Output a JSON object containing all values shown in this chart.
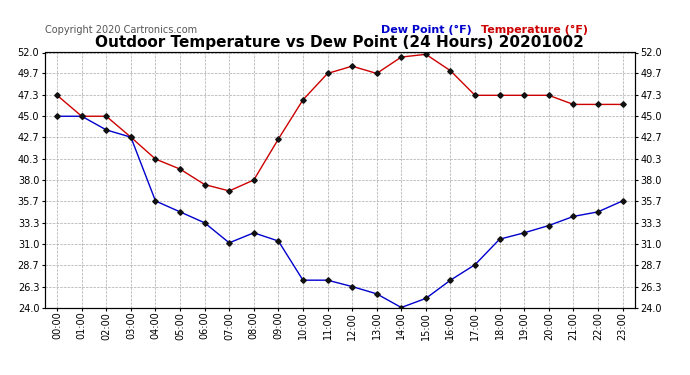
{
  "title": "Outdoor Temperature vs Dew Point (24 Hours) 20201002",
  "copyright": "Copyright 2020 Cartronics.com",
  "legend_dew": "Dew Point (°F)",
  "legend_temp": "Temperature (°F)",
  "hours": [
    0,
    1,
    2,
    3,
    4,
    5,
    6,
    7,
    8,
    9,
    10,
    11,
    12,
    13,
    14,
    15,
    16,
    17,
    18,
    19,
    20,
    21,
    22,
    23
  ],
  "temperature": [
    47.3,
    45.0,
    45.0,
    42.7,
    40.3,
    39.2,
    37.5,
    36.8,
    38.0,
    42.5,
    46.8,
    49.7,
    50.5,
    49.7,
    51.5,
    51.8,
    50.0,
    47.3,
    47.3,
    47.3,
    47.3,
    46.3,
    46.3,
    46.3
  ],
  "dew_point": [
    45.0,
    45.0,
    43.5,
    42.7,
    35.7,
    34.5,
    33.3,
    31.1,
    32.2,
    31.3,
    27.0,
    27.0,
    26.3,
    25.5,
    24.0,
    25.0,
    27.0,
    28.7,
    31.5,
    32.2,
    33.0,
    34.0,
    34.5,
    35.7
  ],
  "temp_color": "#cc0000",
  "dew_color": "#0000cc",
  "marker_color": "#111111",
  "background_color": "#ffffff",
  "grid_color": "#aaaaaa",
  "ylim": [
    24.0,
    52.0
  ],
  "yticks": [
    24.0,
    26.3,
    28.7,
    31.0,
    33.3,
    35.7,
    38.0,
    40.3,
    42.7,
    45.0,
    47.3,
    49.7,
    52.0
  ],
  "title_fontsize": 11,
  "copyright_fontsize": 7,
  "legend_fontsize": 8,
  "axis_fontsize": 7
}
